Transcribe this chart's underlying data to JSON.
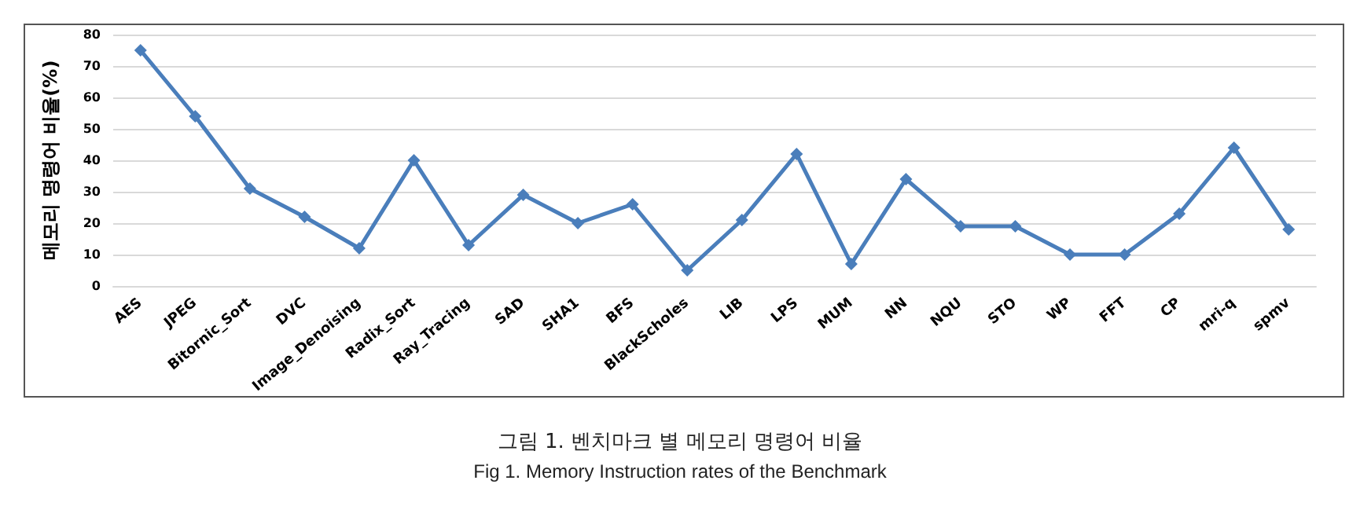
{
  "chart_data": {
    "type": "line",
    "title": "그림 1. 벤치마크 별 메모리 명령어 비율",
    "subtitle": "Fig 1. Memory Instruction rates of the Benchmark",
    "ylabel": "메모리 명령어 비율(%)",
    "categories": [
      "AES",
      "JPEG",
      "Bitornic_Sort",
      "DVC",
      "Image_Denoising",
      "Radix_Sort",
      "Ray_Tracing",
      "SAD",
      "SHA1",
      "BFS",
      "BlackScholes",
      "LIB",
      "LPS",
      "MUM",
      "NN",
      "NQU",
      "STO",
      "WP",
      "FFT",
      "CP",
      "mri-q",
      "spmv"
    ],
    "series": [
      {
        "color": "#4a7ebb",
        "values": [
          75,
          54,
          31,
          22,
          12,
          40,
          13,
          29,
          20,
          26,
          5,
          21,
          42,
          7,
          34,
          19,
          19,
          10,
          10,
          23,
          44,
          18
        ]
      }
    ],
    "ylim": [
      0,
      80
    ],
    "yticks": [
      0,
      10,
      20,
      30,
      40,
      50,
      60,
      70,
      80
    ],
    "grid": "y",
    "marker": "diamond",
    "line_style": "solid"
  }
}
